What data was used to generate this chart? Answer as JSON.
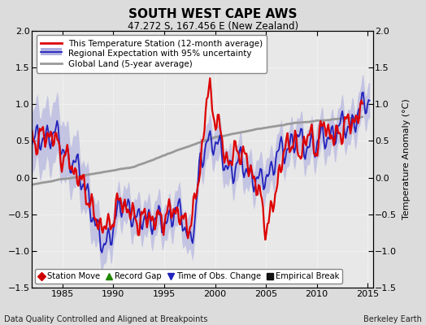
{
  "title": "SOUTH WEST CAPE AWS",
  "subtitle": "47.272 S, 167.456 E (New Zealand)",
  "ylabel": "Temperature Anomaly (°C)",
  "xlabel_left": "Data Quality Controlled and Aligned at Breakpoints",
  "xlabel_right": "Berkeley Earth",
  "ylim": [
    -1.5,
    2.0
  ],
  "xlim": [
    1982.0,
    2015.5
  ],
  "yticks": [
    -1.5,
    -1.0,
    -0.5,
    0.0,
    0.5,
    1.0,
    1.5,
    2.0
  ],
  "xticks": [
    1985,
    1990,
    1995,
    2000,
    2005,
    2010,
    2015
  ],
  "bg_color": "#dcdcdc",
  "plot_bg_color": "#e8e8e8",
  "red_color": "#dd0000",
  "blue_color": "#2222bb",
  "fill_color": "#b0b0e0",
  "gray_color": "#999999",
  "legend_items": [
    {
      "label": "This Temperature Station (12-month average)",
      "color": "#dd0000",
      "lw": 1.8
    },
    {
      "label": "Regional Expectation with 95% uncertainty",
      "color": "#2222bb",
      "lw": 1.5
    },
    {
      "label": "Global Land (5-year average)",
      "color": "#999999",
      "lw": 1.8
    }
  ],
  "marker_items": [
    {
      "label": "Station Move",
      "color": "#cc0000",
      "marker": "D"
    },
    {
      "label": "Record Gap",
      "color": "#228800",
      "marker": "^"
    },
    {
      "label": "Time of Obs. Change",
      "color": "#2222bb",
      "marker": "v"
    },
    {
      "label": "Empirical Break",
      "color": "#111111",
      "marker": "s"
    }
  ]
}
